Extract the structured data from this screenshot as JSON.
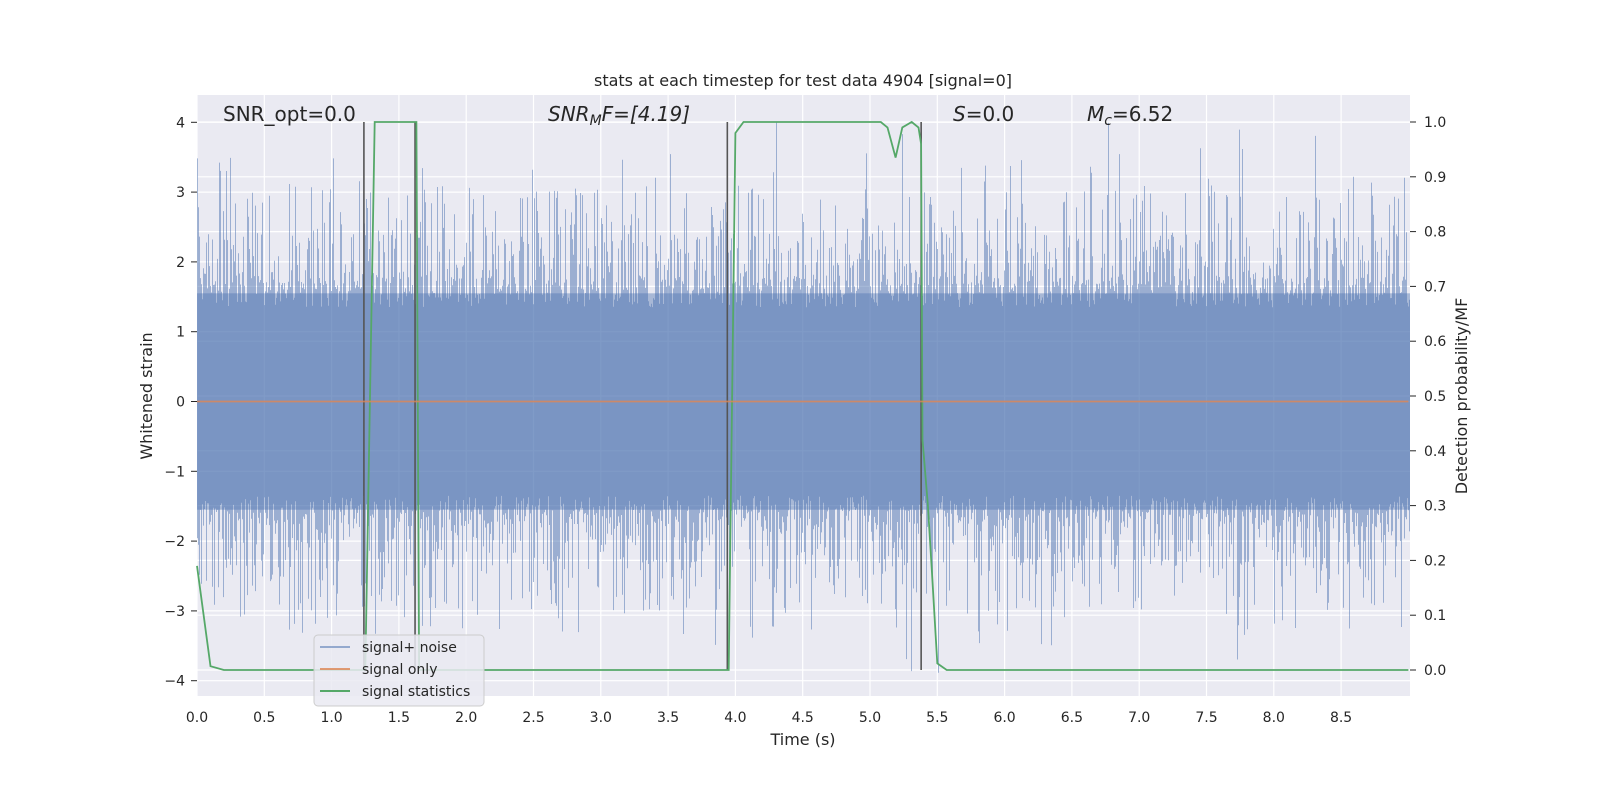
{
  "chart_data": {
    "type": "line",
    "title": "stats at each timestep for test data 4904 [signal=0]",
    "xlabel": "Time (s)",
    "ylabel": "Whitened strain",
    "y2label": "Detection probability/MF",
    "xlim": [
      0.0,
      9.0
    ],
    "ylim": [
      -4.2,
      4.2
    ],
    "y2lim": [
      -0.05,
      1.05
    ],
    "x_ticks": [
      "0.0",
      "0.5",
      "1.0",
      "1.5",
      "2.0",
      "2.5",
      "3.0",
      "3.5",
      "4.0",
      "4.5",
      "5.0",
      "5.5",
      "6.0",
      "6.5",
      "7.0",
      "7.5",
      "8.0",
      "8.5"
    ],
    "y_ticks": [
      "4",
      "3",
      "2",
      "1",
      "0",
      "−1",
      "−2",
      "−3",
      "−4"
    ],
    "y2_ticks": [
      "1.0",
      "0.9",
      "0.8",
      "0.7",
      "0.6",
      "0.5",
      "0.4",
      "0.3",
      "0.2",
      "0.1",
      "0.0"
    ],
    "grid": true,
    "legend_position": "lower-left",
    "legend": [
      "signal+ noise",
      "signal only",
      "signal statistics"
    ],
    "colors": {
      "signal_noise": "#4c72b0",
      "signal_only": "#dd8452",
      "signal_statistics": "#55a868",
      "markers": "#555555",
      "background": "#eaeaf2"
    },
    "annotations": {
      "snr_opt": "SNR_opt=0.0",
      "snr_mf_label": "SNR",
      "snr_mf_sub": "M",
      "snr_mf_rest": "F=[4.19]",
      "s_label": "S",
      "s_rest": "=0.0",
      "mc_label": "M",
      "mc_sub": "c",
      "mc_rest": "=6.52"
    },
    "vertical_markers": [
      1.24,
      1.62,
      3.94,
      5.38
    ],
    "noise_envelope": {
      "upper": [
        1.8,
        2.4,
        3.1,
        3.6,
        4.0
      ],
      "lower": [
        -1.8,
        -2.4,
        -3.0,
        -3.5,
        -3.9
      ]
    },
    "series": [
      {
        "name": "signal statistics",
        "axis": "right",
        "x": [
          0.0,
          0.1,
          0.2,
          1.23,
          1.25,
          1.32,
          1.57,
          1.6,
          1.63,
          1.65,
          3.93,
          3.95,
          4.0,
          4.06,
          4.2,
          5.08,
          5.13,
          5.19,
          5.24,
          5.31,
          5.36,
          5.38,
          5.39,
          5.43,
          5.46,
          5.5,
          5.57,
          5.6,
          9.0
        ],
        "y": [
          0.19,
          0.007,
          0.0,
          0.0,
          0.0,
          1.0,
          1.0,
          1.0,
          1.0,
          0.0,
          0.0,
          0.0,
          0.98,
          1.0,
          1.0,
          1.0,
          0.99,
          0.935,
          0.99,
          1.0,
          0.99,
          0.96,
          0.42,
          0.3,
          0.18,
          0.012,
          0.0,
          0.0,
          0.0
        ]
      },
      {
        "name": "signal only",
        "axis": "left",
        "x": [
          0.0,
          9.0
        ],
        "y": [
          0.0,
          0.0
        ]
      }
    ]
  }
}
